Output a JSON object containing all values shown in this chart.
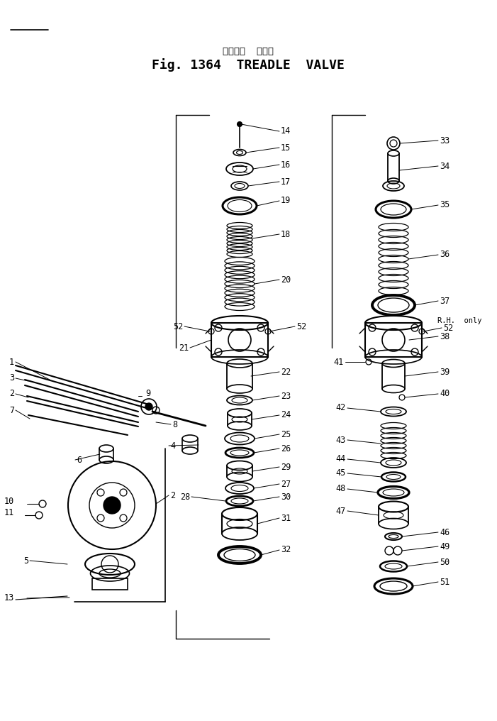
{
  "title_japanese": "トレドル  バルブ",
  "title_english": "Fig. 1364  TREADLE  VALVE",
  "bg_color": "#ffffff",
  "line_color": "#000000",
  "fig_width": 7.01,
  "fig_height": 10.16,
  "dpi": 100
}
